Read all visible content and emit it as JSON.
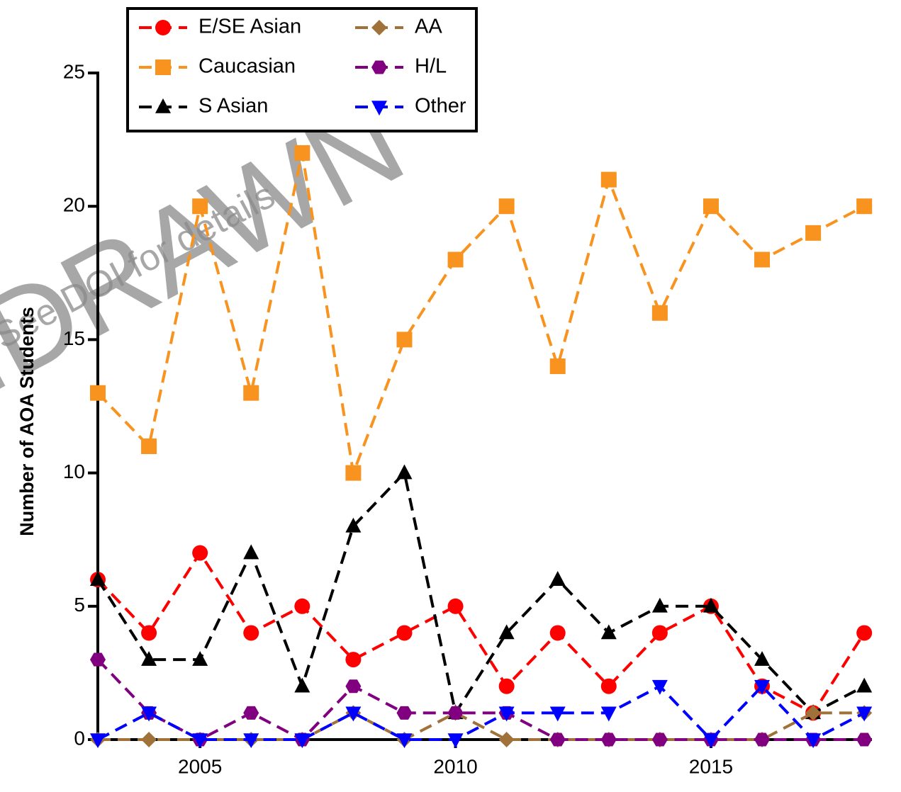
{
  "chart_data": {
    "type": "line",
    "y_label": "Number of AOA Students",
    "watermark": "WITHDRAWN",
    "watermark_note": "See DOI for details",
    "x": [
      2003,
      2004,
      2005,
      2006,
      2007,
      2008,
      2009,
      2010,
      2011,
      2012,
      2013,
      2014,
      2015,
      2016,
      2017,
      2018
    ],
    "xlim": [
      2003,
      2018.15
    ],
    "xticks": [
      2005,
      2010,
      2015
    ],
    "ylim": [
      0,
      25
    ],
    "yticks": [
      0,
      5,
      10,
      15,
      20,
      25
    ],
    "legend": "top-left",
    "series": [
      {
        "name": "E/SE Asian",
        "color": "#ff0000",
        "marker": "circle",
        "values": [
          6,
          4,
          7,
          4,
          5,
          3,
          4,
          5,
          2,
          4,
          2,
          4,
          5,
          2,
          1,
          4
        ]
      },
      {
        "name": "Caucasian",
        "color": "#f7931e",
        "marker": "square",
        "values": [
          13,
          11,
          20,
          13,
          22,
          10,
          15,
          18,
          20,
          14,
          21,
          16,
          20,
          18,
          19,
          20
        ]
      },
      {
        "name": "S Asian",
        "color": "#000000",
        "marker": "triangle-up",
        "values": [
          6,
          3,
          3,
          7,
          2,
          8,
          10,
          1,
          4,
          6,
          4,
          5,
          5,
          3,
          1,
          2
        ]
      },
      {
        "name": "AA",
        "color": "#a0723a",
        "marker": "diamond",
        "values": [
          0,
          0,
          0,
          0,
          0,
          1,
          0,
          1,
          0,
          0,
          0,
          0,
          0,
          0,
          1,
          1
        ]
      },
      {
        "name": "H/L",
        "color": "#800080",
        "marker": "hexagon",
        "values": [
          3,
          1,
          0,
          1,
          0,
          2,
          1,
          1,
          1,
          0,
          0,
          0,
          0,
          0,
          0,
          0
        ]
      },
      {
        "name": "Other",
        "color": "#0000ff",
        "marker": "triangle-down",
        "values": [
          0,
          1,
          0,
          0,
          0,
          1,
          0,
          0,
          1,
          1,
          1,
          2,
          0,
          2,
          0,
          1
        ]
      }
    ]
  }
}
